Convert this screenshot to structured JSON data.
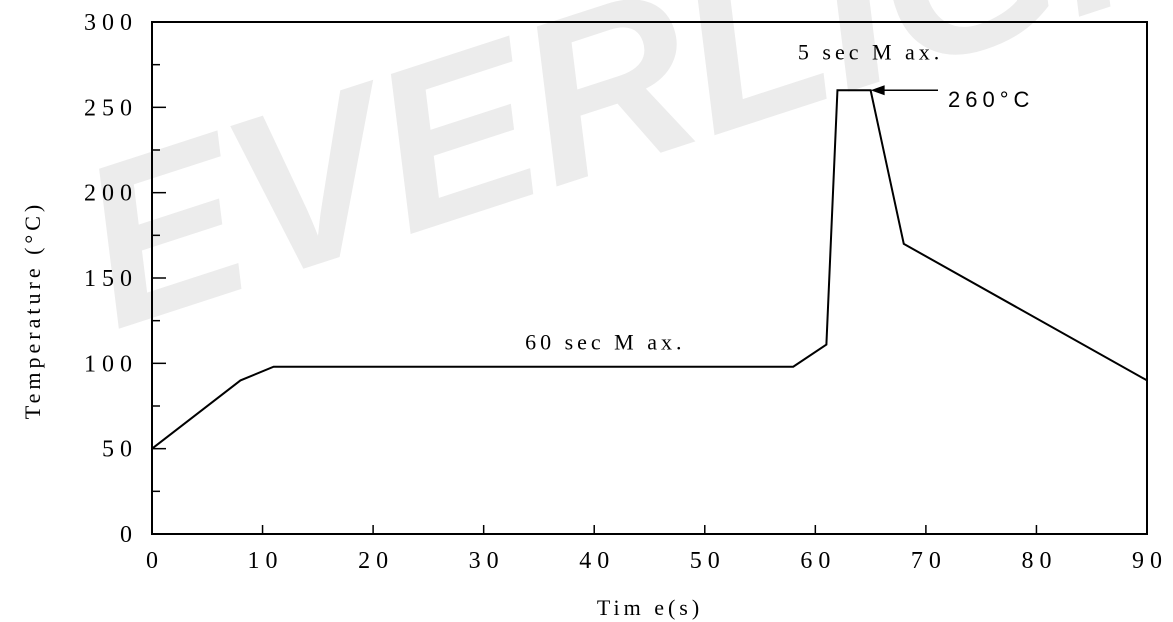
{
  "chart_data": {
    "type": "line",
    "title": "",
    "xlabel": "Tim e(s)",
    "ylabel": "Temperature (°C)",
    "xlim": [
      0,
      90
    ],
    "ylim": [
      0,
      300
    ],
    "x_ticks": [
      0,
      10,
      20,
      30,
      40,
      50,
      60,
      70,
      80,
      90
    ],
    "x_tick_labels": [
      "0",
      "10",
      "20",
      "30",
      "40",
      "50",
      "60",
      "70",
      "80",
      "90"
    ],
    "y_ticks": [
      0,
      50,
      100,
      150,
      200,
      250,
      300
    ],
    "y_tick_labels": [
      "0",
      "50",
      "100",
      "150",
      "200",
      "250",
      "300"
    ],
    "y_minor_step": 25,
    "grid": false,
    "series": [
      {
        "x": [
          0,
          8,
          11,
          58,
          61,
          62,
          65,
          68,
          90
        ],
        "y": [
          50,
          90,
          98,
          98,
          111,
          260,
          260,
          170,
          90
        ]
      }
    ],
    "annotations": [
      {
        "text": "60 sec M ax.",
        "x": 41,
        "y": 108
      },
      {
        "text": "5 sec M ax.",
        "x": 65,
        "y": 278
      },
      {
        "text": "260°C",
        "x": 72,
        "y": 255,
        "arrow_to": [
          65,
          260
        ]
      }
    ],
    "watermark": "EVERLIGHT"
  }
}
